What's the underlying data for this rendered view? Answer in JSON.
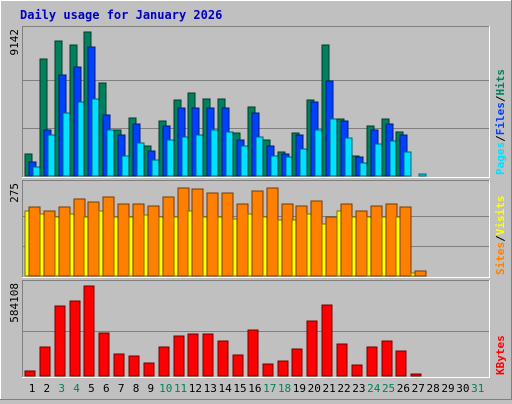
{
  "title": "Daily usage for January 2026",
  "colors": {
    "background": "#c0c0c0",
    "hits": "#00805c",
    "files": "#0040ff",
    "pages": "#00e0ff",
    "visits": "#ffff00",
    "sites": "#ff8000",
    "kbytes": "#ff0000",
    "title": "#0000ff"
  },
  "chart_data": [
    {
      "type": "bar",
      "panel": "hits-files-pages",
      "ymax_label": "9142",
      "ylim": [
        0,
        9142
      ],
      "legend": [
        {
          "label": "Hits",
          "color": "#00805c"
        },
        {
          "label": "Files",
          "color": "#0040ff"
        },
        {
          "label": "Pages",
          "color": "#00e0ff"
        }
      ],
      "legend_sep": "/",
      "series": [
        {
          "name": "Hits",
          "values": [
            1400,
            7400,
            8600,
            8300,
            9142,
            5900,
            2900,
            3700,
            1900,
            3500,
            4800,
            5300,
            4900,
            4900,
            2700,
            4400,
            2300,
            1500,
            2700,
            4800,
            8300,
            3600,
            1300,
            3200,
            3600,
            2800,
            0,
            0,
            0,
            0,
            0
          ]
        },
        {
          "name": "Files",
          "values": [
            900,
            2900,
            6400,
            6900,
            8200,
            3900,
            2600,
            3300,
            1600,
            3200,
            4300,
            4300,
            4300,
            4300,
            2300,
            4000,
            1900,
            1400,
            2600,
            4700,
            6000,
            3500,
            1200,
            2900,
            3300,
            2600,
            0,
            0,
            0,
            0,
            0
          ]
        },
        {
          "name": "Pages",
          "values": [
            600,
            2600,
            4000,
            4700,
            4900,
            2900,
            1300,
            2100,
            1000,
            2300,
            2500,
            2600,
            2900,
            2800,
            1900,
            2500,
            1300,
            1200,
            1700,
            2900,
            3600,
            2400,
            800,
            2000,
            2200,
            1500,
            100,
            0,
            0,
            0,
            0
          ]
        }
      ]
    },
    {
      "type": "bar",
      "panel": "visits-sites",
      "ymax_label": "275",
      "ylim": [
        0,
        275
      ],
      "legend": [
        {
          "label": "Visits",
          "color": "#ffff00"
        },
        {
          "label": "Sites",
          "color": "#ff8000"
        }
      ],
      "legend_sep": "/",
      "series": [
        {
          "name": "Visits",
          "values": [
            200,
            190,
            180,
            190,
            180,
            200,
            180,
            180,
            185,
            180,
            180,
            200,
            180,
            180,
            175,
            190,
            180,
            170,
            170,
            190,
            160,
            200,
            180,
            180,
            180,
            180,
            10,
            0,
            0,
            0,
            0
          ]
        },
        {
          "name": "Sites",
          "values": [
            210,
            200,
            210,
            235,
            225,
            240,
            220,
            220,
            215,
            240,
            270,
            265,
            255,
            255,
            220,
            260,
            270,
            220,
            215,
            230,
            180,
            220,
            200,
            215,
            220,
            210,
            15,
            0,
            0,
            0,
            0
          ]
        }
      ]
    },
    {
      "type": "bar",
      "panel": "kbytes",
      "ymax_label": "584108",
      "ylim": [
        0,
        584108
      ],
      "legend": [
        {
          "label": "KBytes",
          "color": "#ff0000"
        }
      ],
      "series": [
        {
          "name": "KBytes",
          "values": [
            35000,
            190000,
            455000,
            490000,
            584108,
            280000,
            140000,
            130000,
            85000,
            190000,
            260000,
            275000,
            270000,
            230000,
            135000,
            300000,
            75000,
            95000,
            175000,
            360000,
            460000,
            210000,
            70000,
            190000,
            225000,
            160000,
            10000,
            0,
            0,
            0,
            0
          ]
        }
      ]
    }
  ],
  "x_labels": [
    "1",
    "2",
    "3",
    "4",
    "5",
    "6",
    "7",
    "8",
    "9",
    "10",
    "11",
    "12",
    "13",
    "14",
    "15",
    "16",
    "17",
    "18",
    "19",
    "20",
    "21",
    "22",
    "23",
    "24",
    "25",
    "26",
    "27",
    "28",
    "29",
    "30",
    "31"
  ],
  "weekend_days": [
    3,
    4,
    10,
    11,
    17,
    18,
    24,
    25,
    31
  ]
}
